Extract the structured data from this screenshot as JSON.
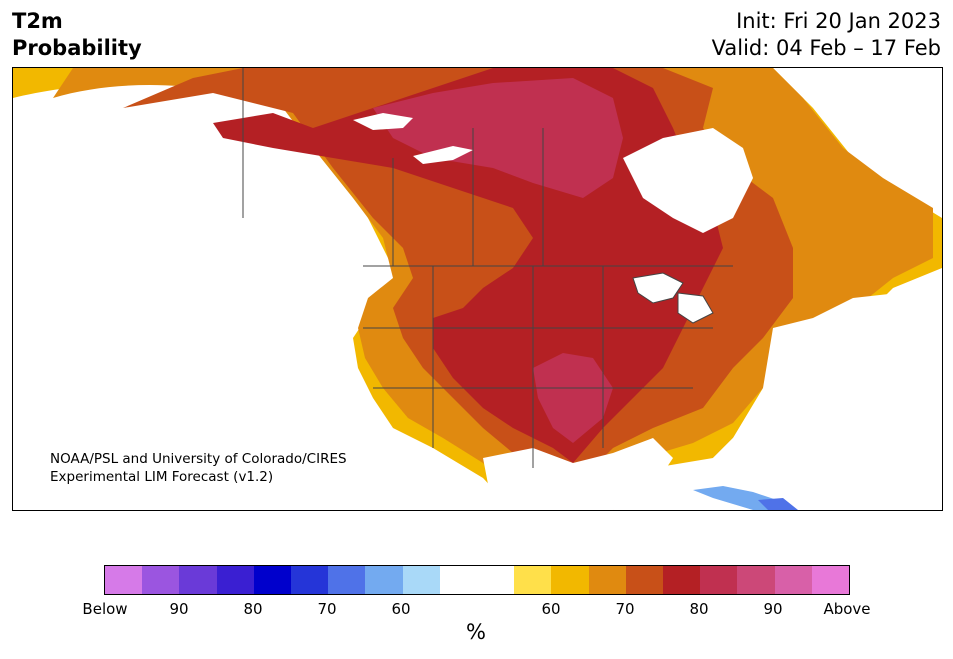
{
  "header": {
    "variable": "T2m",
    "product": "Probability",
    "init": "Init: Fri 20 Jan 2023",
    "valid": "Valid: 04 Feb – 17 Feb"
  },
  "map": {
    "credit_line1": "NOAA/PSL and University of Colorado/CIRES",
    "credit_line2": "Experimental LIM Forecast (v1.2)"
  },
  "colorbar": {
    "unit": "%",
    "below_label": "Below",
    "above_label": "Above",
    "below_ticks": [
      "90",
      "80",
      "70",
      "60"
    ],
    "above_ticks": [
      "60",
      "70",
      "80",
      "90"
    ],
    "colors": [
      "#d67ae8",
      "#9b55e0",
      "#6a3ad8",
      "#3a1fd2",
      "#0000cc",
      "#2535d8",
      "#4f72e8",
      "#73aaf0",
      "#a9d9f8",
      "#ffffff",
      "#ffffff",
      "#ffe04a",
      "#f2b800",
      "#e08a10",
      "#c85018",
      "#b42024",
      "#c03050",
      "#cc4878",
      "#d860a8",
      "#e878d8"
    ]
  }
}
